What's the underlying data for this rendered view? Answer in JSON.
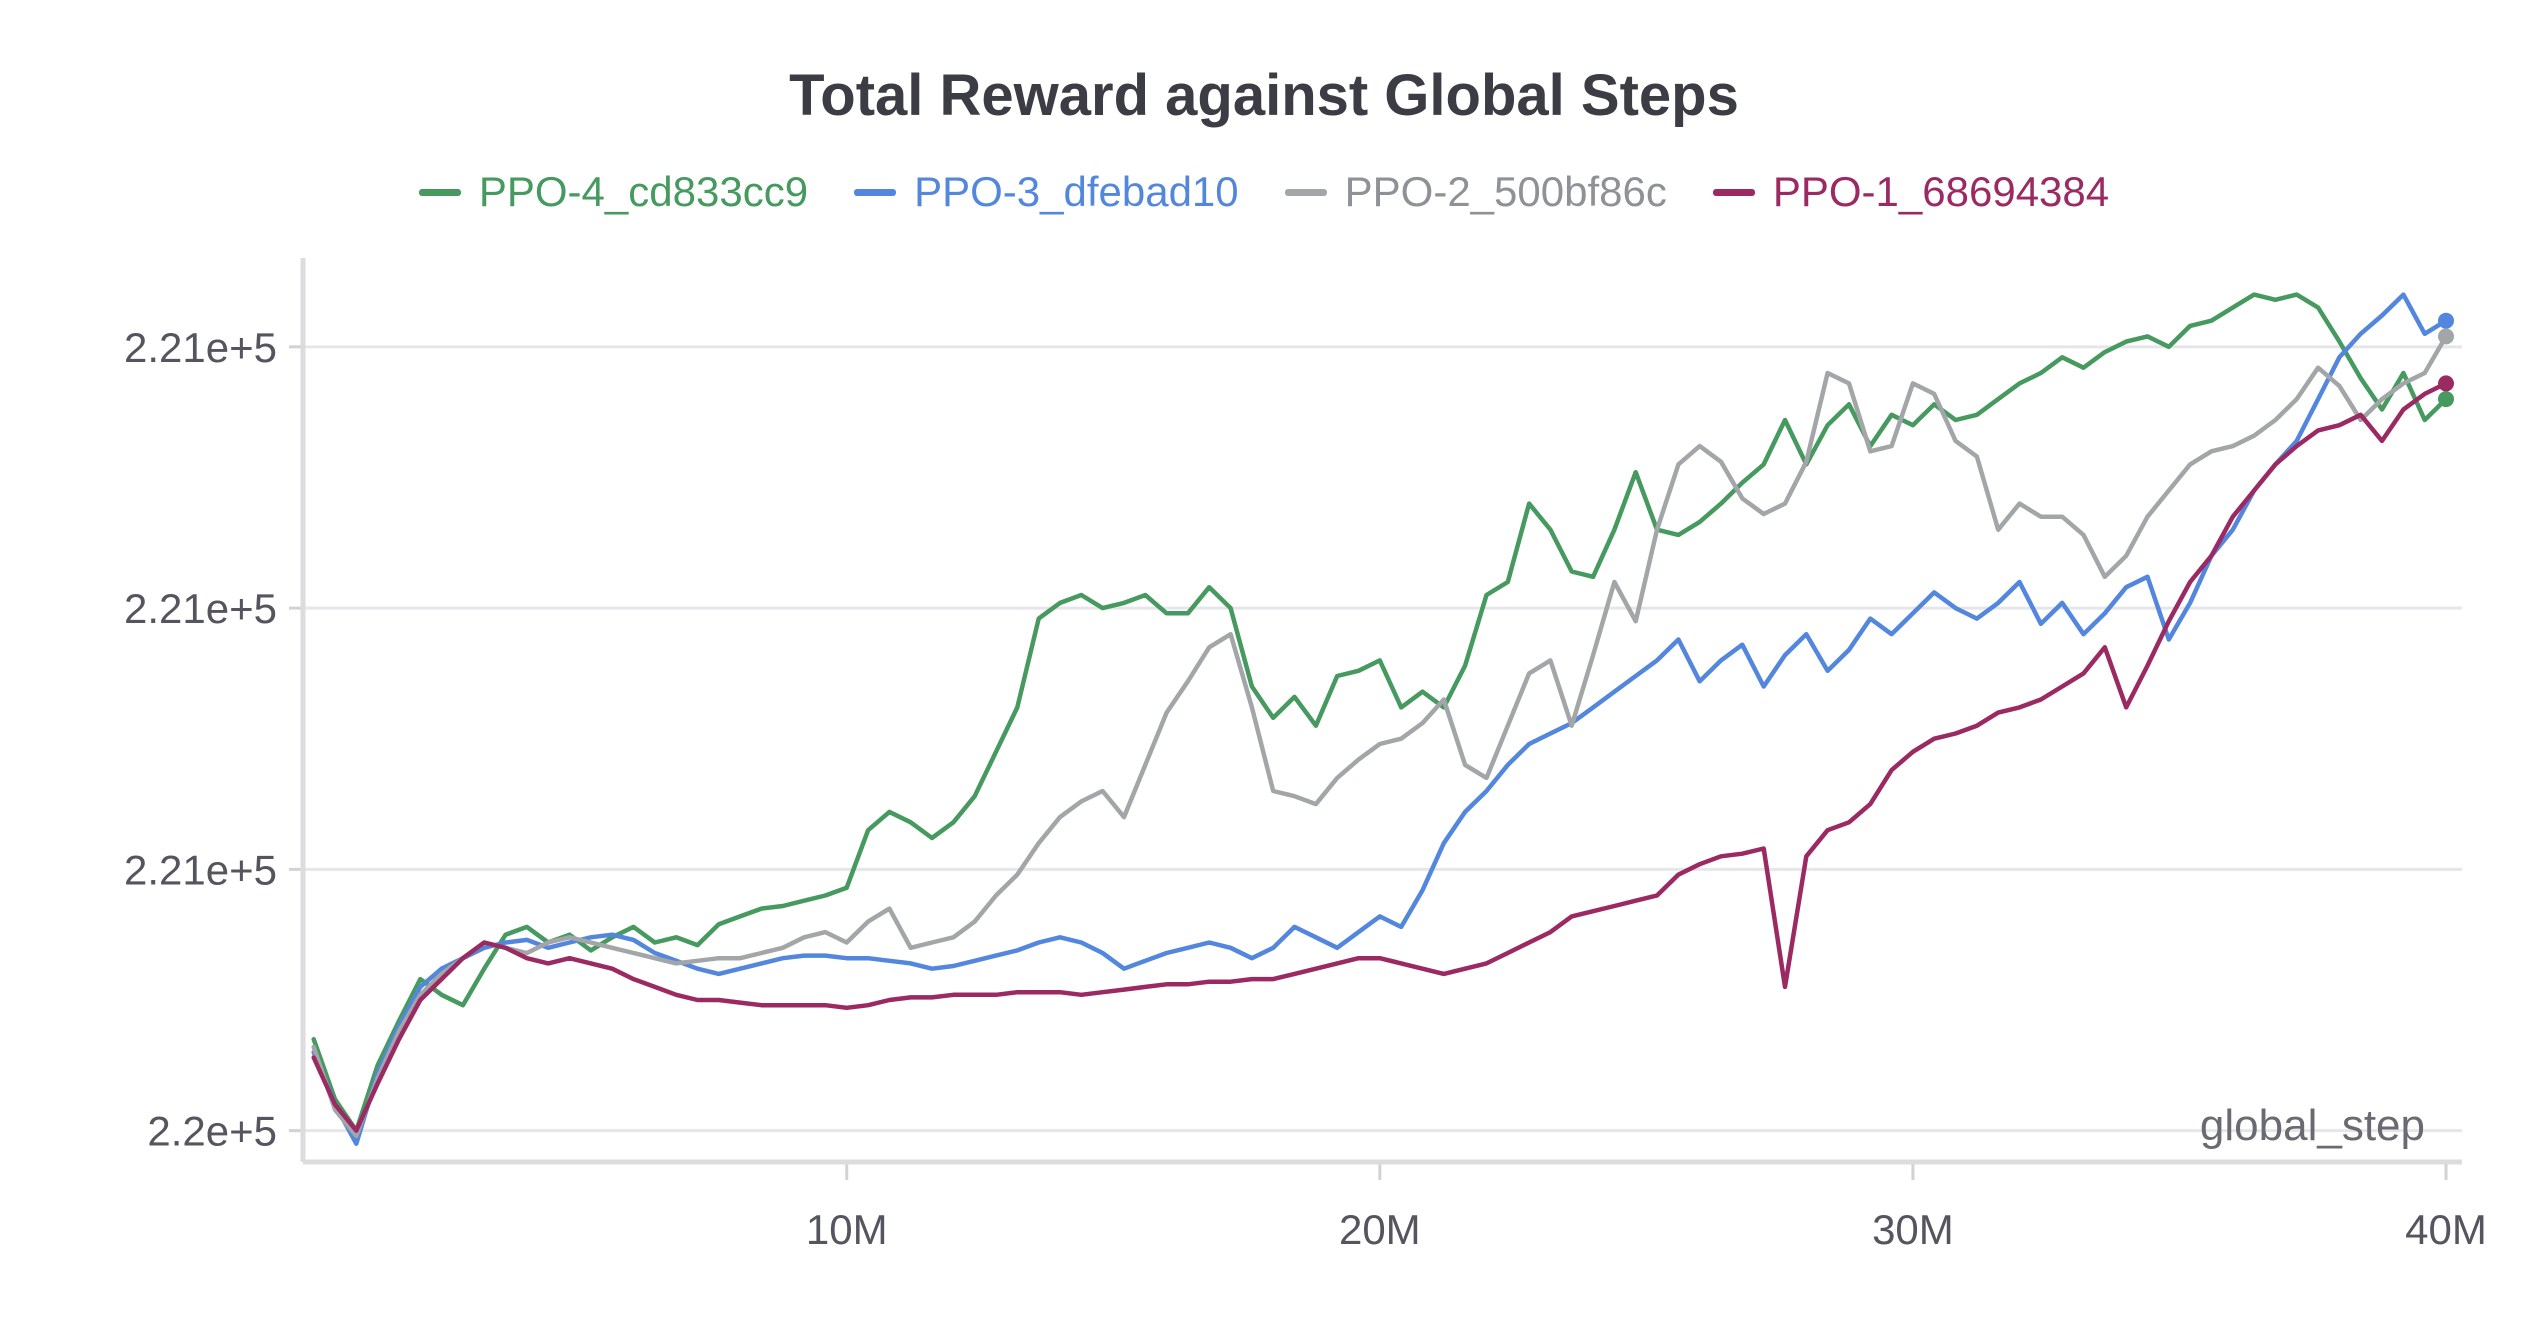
{
  "chart_data": {
    "type": "line",
    "title": "Total Reward against Global Steps",
    "xlabel": "global_step",
    "ylabel": "",
    "x_ticks": [
      {
        "value": 10000000,
        "label": "10M"
      },
      {
        "value": 20000000,
        "label": "20M"
      },
      {
        "value": 30000000,
        "label": "30M"
      },
      {
        "value": 40000000,
        "label": "40M"
      }
    ],
    "y_ticks": [
      {
        "value": 0,
        "label": "2.2e+5"
      },
      {
        "value": 1,
        "label": "2.21e+5"
      },
      {
        "value": 2,
        "label": "2.21e+5"
      },
      {
        "value": 3,
        "label": "2.21e+5"
      }
    ],
    "y_note": "Tick labels are rounded; y values below are in relative tick units (0 = lowest gridline, 3 = highest).",
    "xlim": [
      -200000,
      40300000
    ],
    "ylim": [
      -0.12,
      3.34
    ],
    "grid": true,
    "legend_position": "top-center",
    "x": [
      0,
      400000,
      800000,
      1200000,
      1600000,
      2000000,
      2400000,
      2800000,
      3200000,
      3600000,
      4000000,
      4400000,
      4800000,
      5200000,
      5600000,
      6000000,
      6400000,
      6800000,
      7200000,
      7600000,
      8000000,
      8400000,
      8800000,
      9200000,
      9600000,
      10000000,
      10400000,
      10800000,
      11200000,
      11600000,
      12000000,
      12400000,
      12800000,
      13200000,
      13600000,
      14000000,
      14400000,
      14800000,
      15200000,
      15600000,
      16000000,
      16400000,
      16800000,
      17200000,
      17600000,
      18000000,
      18400000,
      18800000,
      19200000,
      19600000,
      20000000,
      20400000,
      20800000,
      21200000,
      21600000,
      22000000,
      22400000,
      22800000,
      23200000,
      23600000,
      24000000,
      24400000,
      24800000,
      25200000,
      25600000,
      26000000,
      26400000,
      26800000,
      27200000,
      27600000,
      28000000,
      28400000,
      28800000,
      29200000,
      29600000,
      30000000,
      30400000,
      30800000,
      31200000,
      31600000,
      32000000,
      32400000,
      32800000,
      33200000,
      33600000,
      34000000,
      34400000,
      34800000,
      35200000,
      35600000,
      36000000,
      36400000,
      36800000,
      37200000,
      37600000,
      38000000,
      38400000,
      38800000,
      39200000,
      39600000,
      40000000
    ],
    "series": [
      {
        "name": "PPO-4_cd833cc9",
        "color": "#479a5f",
        "values": [
          0.35,
          0.12,
          0.0,
          0.25,
          0.42,
          0.58,
          0.52,
          0.48,
          0.62,
          0.75,
          0.78,
          0.72,
          0.75,
          0.69,
          0.74,
          0.78,
          0.72,
          0.74,
          0.71,
          0.79,
          0.82,
          0.85,
          0.86,
          0.88,
          0.9,
          0.93,
          1.15,
          1.22,
          1.18,
          1.12,
          1.18,
          1.28,
          1.45,
          1.62,
          1.96,
          2.02,
          2.05,
          2.0,
          2.02,
          2.05,
          1.98,
          1.98,
          2.08,
          2.0,
          1.7,
          1.58,
          1.66,
          1.55,
          1.74,
          1.76,
          1.8,
          1.62,
          1.68,
          1.62,
          1.78,
          2.05,
          2.1,
          2.4,
          2.3,
          2.14,
          2.12,
          2.3,
          2.52,
          2.3,
          2.28,
          2.33,
          2.4,
          2.48,
          2.55,
          2.72,
          2.55,
          2.7,
          2.78,
          2.62,
          2.74,
          2.7,
          2.78,
          2.72,
          2.74,
          2.8,
          2.86,
          2.9,
          2.96,
          2.92,
          2.98,
          3.02,
          3.04,
          3.0,
          3.08,
          3.1,
          3.15,
          3.2,
          3.18,
          3.2,
          3.15,
          3.02,
          2.88,
          2.76,
          2.9,
          2.72,
          2.8
        ]
      },
      {
        "name": "PPO-3_dfebad10",
        "color": "#5387dd",
        "values": [
          0.3,
          0.1,
          -0.05,
          0.22,
          0.4,
          0.55,
          0.62,
          0.66,
          0.7,
          0.72,
          0.73,
          0.7,
          0.72,
          0.74,
          0.75,
          0.73,
          0.68,
          0.65,
          0.62,
          0.6,
          0.62,
          0.64,
          0.66,
          0.67,
          0.67,
          0.66,
          0.66,
          0.65,
          0.64,
          0.62,
          0.63,
          0.65,
          0.67,
          0.69,
          0.72,
          0.74,
          0.72,
          0.68,
          0.62,
          0.65,
          0.68,
          0.7,
          0.72,
          0.7,
          0.66,
          0.7,
          0.78,
          0.74,
          0.7,
          0.76,
          0.82,
          0.78,
          0.92,
          1.1,
          1.22,
          1.3,
          1.4,
          1.48,
          1.52,
          1.56,
          1.62,
          1.68,
          1.74,
          1.8,
          1.88,
          1.72,
          1.8,
          1.86,
          1.7,
          1.82,
          1.9,
          1.76,
          1.84,
          1.96,
          1.9,
          1.98,
          2.06,
          2.0,
          1.96,
          2.02,
          2.1,
          1.94,
          2.02,
          1.9,
          1.98,
          2.08,
          2.12,
          1.88,
          2.02,
          2.2,
          2.3,
          2.45,
          2.55,
          2.64,
          2.8,
          2.96,
          3.05,
          3.12,
          3.2,
          3.05,
          3.1
        ]
      },
      {
        "name": "PPO-2_500bf86c",
        "color": "#a3a6a9",
        "values": [
          0.32,
          0.08,
          -0.02,
          0.2,
          0.38,
          0.52,
          0.6,
          0.66,
          0.72,
          0.7,
          0.68,
          0.72,
          0.74,
          0.72,
          0.7,
          0.68,
          0.66,
          0.64,
          0.65,
          0.66,
          0.66,
          0.68,
          0.7,
          0.74,
          0.76,
          0.72,
          0.8,
          0.85,
          0.7,
          0.72,
          0.74,
          0.8,
          0.9,
          0.98,
          1.1,
          1.2,
          1.26,
          1.3,
          1.2,
          1.4,
          1.6,
          1.72,
          1.85,
          1.9,
          1.62,
          1.3,
          1.28,
          1.25,
          1.35,
          1.42,
          1.48,
          1.5,
          1.56,
          1.65,
          1.4,
          1.35,
          1.55,
          1.75,
          1.8,
          1.55,
          1.82,
          2.1,
          1.95,
          2.3,
          2.55,
          2.62,
          2.56,
          2.42,
          2.36,
          2.4,
          2.56,
          2.9,
          2.86,
          2.6,
          2.62,
          2.86,
          2.82,
          2.64,
          2.58,
          2.3,
          2.4,
          2.35,
          2.35,
          2.28,
          2.12,
          2.2,
          2.35,
          2.45,
          2.55,
          2.6,
          2.62,
          2.66,
          2.72,
          2.8,
          2.92,
          2.85,
          2.72,
          2.8,
          2.86,
          2.9,
          3.04
        ]
      },
      {
        "name": "PPO-1_68694384",
        "color": "#9c2a62",
        "values": [
          0.28,
          0.1,
          0.0,
          0.18,
          0.35,
          0.5,
          0.58,
          0.66,
          0.72,
          0.7,
          0.66,
          0.64,
          0.66,
          0.64,
          0.62,
          0.58,
          0.55,
          0.52,
          0.5,
          0.5,
          0.49,
          0.48,
          0.48,
          0.48,
          0.48,
          0.47,
          0.48,
          0.5,
          0.51,
          0.51,
          0.52,
          0.52,
          0.52,
          0.53,
          0.53,
          0.53,
          0.52,
          0.53,
          0.54,
          0.55,
          0.56,
          0.56,
          0.57,
          0.57,
          0.58,
          0.58,
          0.6,
          0.62,
          0.64,
          0.66,
          0.66,
          0.64,
          0.62,
          0.6,
          0.62,
          0.64,
          0.68,
          0.72,
          0.76,
          0.82,
          0.84,
          0.86,
          0.88,
          0.9,
          0.98,
          1.02,
          1.05,
          1.06,
          1.08,
          0.55,
          1.05,
          1.15,
          1.18,
          1.25,
          1.38,
          1.45,
          1.5,
          1.52,
          1.55,
          1.6,
          1.62,
          1.65,
          1.7,
          1.75,
          1.85,
          1.62,
          1.78,
          1.95,
          2.1,
          2.2,
          2.35,
          2.45,
          2.55,
          2.62,
          2.68,
          2.7,
          2.74,
          2.64,
          2.76,
          2.82,
          2.86
        ]
      }
    ]
  }
}
